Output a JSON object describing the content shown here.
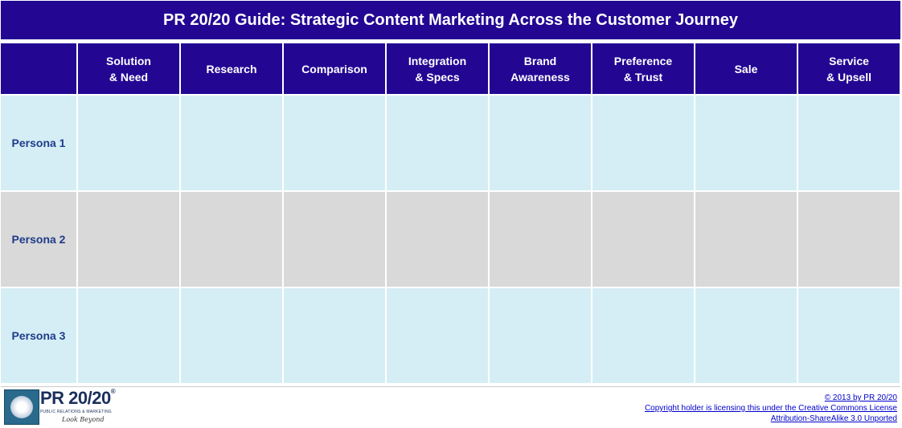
{
  "title": "PR 20/20 Guide: Strategic Content Marketing Across the Customer Journey",
  "columns": [
    "Solution\n& Need",
    "Research",
    "Comparison",
    "Integration\n& Specs",
    "Brand\nAwareness",
    "Preference\n& Trust",
    "Sale",
    "Service\n& Upsell"
  ],
  "rows": [
    "Persona 1",
    "Persona 2",
    "Persona 3"
  ],
  "colors": {
    "header_bg": "#230793",
    "row_light_blue": "#d5eef5",
    "row_gray": "#d9d9d9",
    "row_label_text": "#1f3c8a"
  },
  "logo": {
    "name": "PR 20/20",
    "mark": "®",
    "subtitle": "PUBLIC RELATIONS & MARKETING",
    "tagline": "Look Beyond",
    "icon": "globe-logo-icon"
  },
  "credits": {
    "copyright": "© 2013 by PR 20/20",
    "license_line1": "Copyright holder is licensing this under the Creative Commons License",
    "license_line2": "Attribution-ShareAlike 3.0 Unported"
  }
}
